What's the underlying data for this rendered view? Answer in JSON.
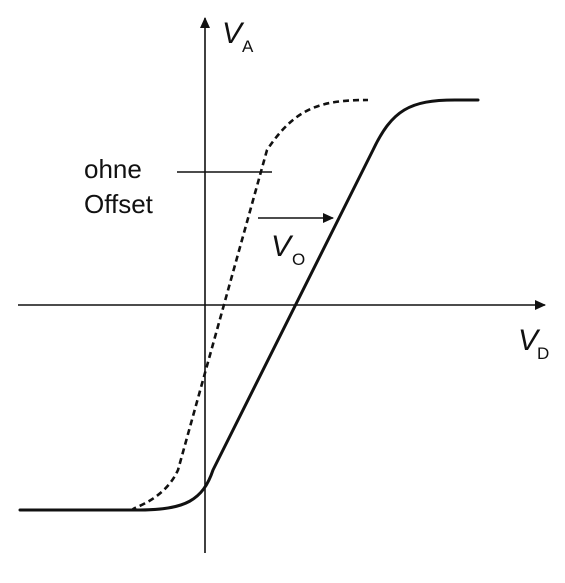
{
  "axes": {
    "vertical": {
      "symbol": "V",
      "subscript": "A"
    },
    "horizontal": {
      "symbol": "V",
      "subscript": "D"
    }
  },
  "curves": {
    "without_offset_label_line1": "ohne",
    "without_offset_label_line2": "Offset",
    "offset_symbol": "V",
    "offset_subscript": "O"
  }
}
